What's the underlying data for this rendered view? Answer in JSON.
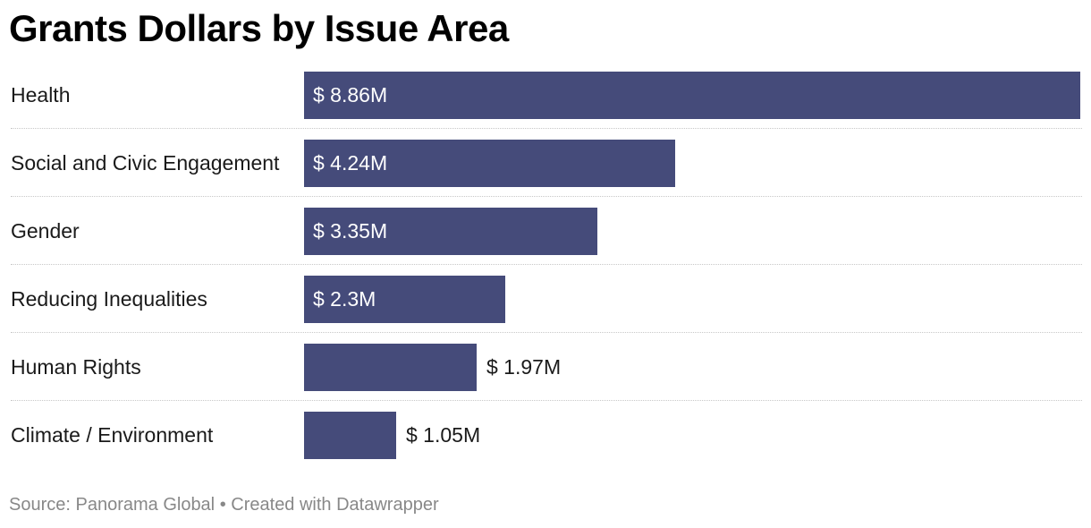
{
  "title": "Grants Dollars by Issue Area",
  "footer": {
    "source": "Source: Panorama Global",
    "separator": "•",
    "credit": "Created with Datawrapper"
  },
  "colors": {
    "bar": "#454b7a"
  },
  "chart_data": {
    "type": "bar",
    "orientation": "horizontal",
    "title": "Grants Dollars by Issue Area",
    "categories": [
      "Health",
      "Social and Civic Engagement",
      "Gender",
      "Reducing Inequalities",
      "Human Rights",
      "Climate / Environment"
    ],
    "values": [
      8.86,
      4.24,
      3.35,
      2.3,
      1.97,
      1.05
    ],
    "value_labels": [
      "$ 8.86M",
      "$ 4.24M",
      "$ 3.35M",
      "$ 2.3M",
      "$ 1.97M",
      "$ 1.05M"
    ],
    "unit": "M USD",
    "xlim": [
      0,
      8.86
    ],
    "xlabel": "",
    "ylabel": "",
    "grid": false
  }
}
